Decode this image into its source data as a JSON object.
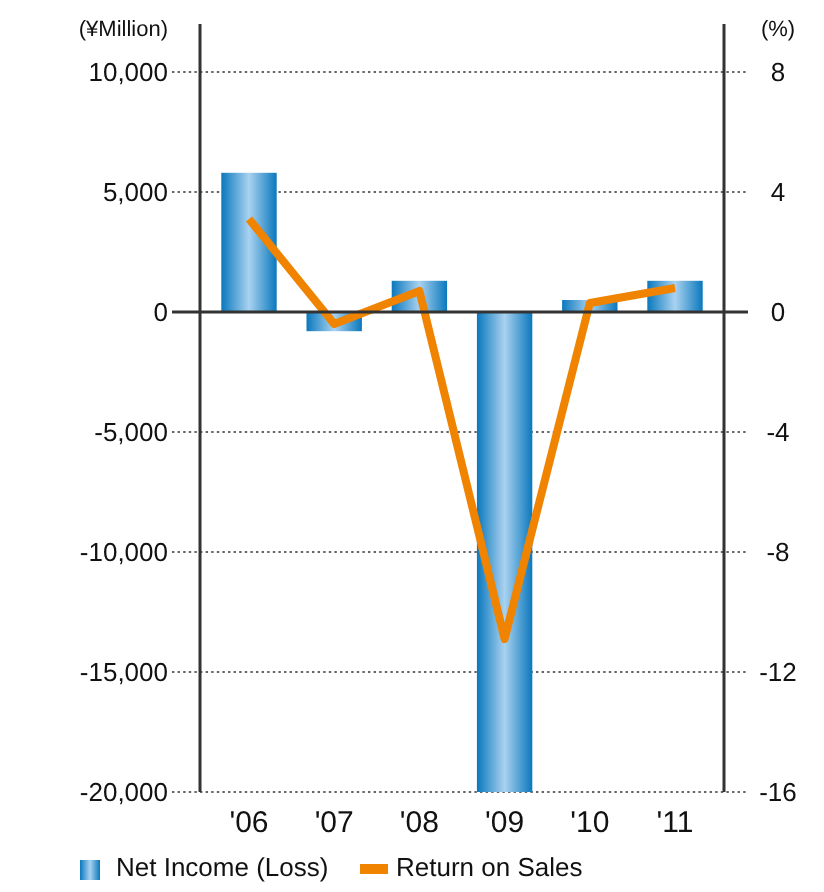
{
  "chart_data": {
    "type": "bar",
    "ylabel": "(¥Million)",
    "y2label": "(%)",
    "categories": [
      "'06",
      "'07",
      "'08",
      "'09",
      "'10",
      "'11"
    ],
    "series": [
      {
        "name": "Net Income (Loss)",
        "color": "#0a78bd",
        "values": [
          5800,
          -800,
          1300,
          -20000,
          500,
          1300
        ]
      },
      {
        "name": "Return on Sales",
        "type": "line",
        "axis": "y2",
        "color": "#f08300",
        "values": [
          3.1,
          -0.4,
          0.7,
          -10.9,
          0.3,
          0.8
        ]
      }
    ],
    "ylim": [
      -20000,
      12000
    ],
    "yticks": [
      {
        "value": -20000,
        "label": "-20,000"
      },
      {
        "value": -15000,
        "label": "-15,000"
      },
      {
        "value": -10000,
        "label": "-10,000"
      },
      {
        "value": -5000,
        "label": "-5,000"
      },
      0,
      {
        "value": 5000,
        "label": "5,000"
      },
      {
        "value": 10000,
        "label": "10,000"
      }
    ],
    "y2lim": [
      -16,
      9.6
    ],
    "y2ticks": [
      -16,
      -12,
      -8,
      -4,
      0,
      4,
      8
    ],
    "grid": "y",
    "legend": "bottom",
    "marker": "none",
    "line_style": "solid"
  }
}
